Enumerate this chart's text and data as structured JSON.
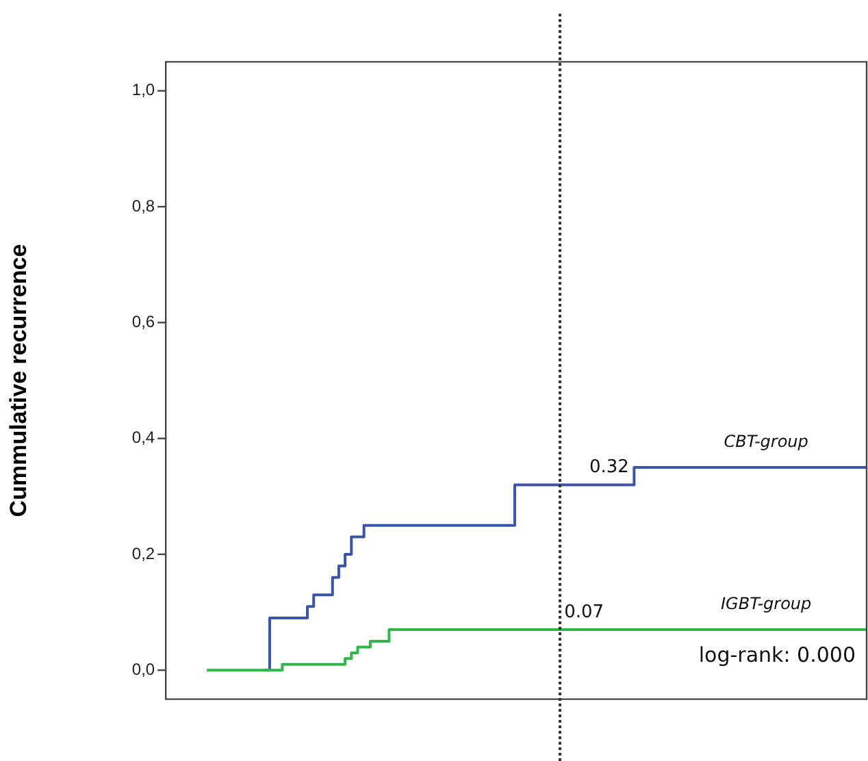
{
  "chart_data": {
    "type": "step",
    "ylabel": "Cummulative recurrence",
    "categories": [
      null,
      null,
      null,
      null,
      null,
      null,
      null,
      null,
      null,
      null,
      null,
      null,
      null,
      null,
      null,
      null,
      null,
      null,
      null,
      null,
      null,
      null,
      null,
      null,
      null,
      null,
      null,
      null,
      null,
      null,
      null,
      null,
      null,
      null,
      null,
      null,
      null,
      null,
      null,
      null,
      null,
      null,
      null,
      null,
      null,
      null,
      null,
      null,
      null,
      null,
      null,
      null,
      null,
      null,
      null,
      null,
      null,
      null,
      null,
      null,
      null,
      null,
      null,
      null,
      null,
      null,
      null,
      null,
      null,
      null,
      null,
      null,
      null,
      null,
      null,
      null,
      null,
      null,
      null,
      null,
      null,
      null,
      null,
      null,
      null,
      null,
      null,
      null,
      null,
      null,
      null,
      null,
      null,
      null,
      null,
      null,
      null,
      null,
      null,
      null,
      null,
      null,
      null,
      null,
      null,
      null
    ],
    "series": [
      {
        "name": "CBT-group",
        "color": "#3a55a8",
        "values": [
          null,
          null,
          null,
          null,
          null,
          null,
          null,
          null,
          null,
          0,
          0.09,
          0.09,
          0.09,
          0.09,
          0.09,
          0.09,
          0.11,
          0.13,
          0.13,
          0.13,
          0.16,
          0.18,
          0.2,
          0.23,
          0.23,
          0.25,
          0.25,
          0.25,
          0.25,
          0.25,
          0.25,
          0.25,
          0.25,
          0.25,
          0.25,
          0.25,
          0.25,
          0.25,
          0.25,
          0.25,
          0.25,
          0.25,
          0.25,
          0.25,
          0.25,
          0.25,
          0.25,
          0.25,
          0.25,
          0.32,
          0.32,
          0.32,
          0.32,
          0.32,
          0.32,
          0.32,
          0.32,
          0.32,
          0.32,
          0.32,
          0.32,
          0.32,
          0.32,
          0.32,
          0.32,
          0.32,
          0.32,
          0.32,
          0.35,
          0.35,
          0.35,
          0.35,
          0.35,
          0.35,
          0.35,
          0.35,
          0.35,
          0.35,
          0.35,
          0.35,
          0.35,
          0.35,
          0.35,
          0.35,
          0.35,
          0.35,
          0.35,
          0.35,
          0.35,
          0.35,
          0.35,
          0.35,
          0.35,
          0.35,
          0.35,
          0.35,
          0.35,
          0.35,
          0.35,
          0.35,
          0.35,
          0.35,
          0.35,
          0.35,
          0.35,
          0.35
        ],
        "value_labels": [
          null,
          null,
          null,
          null,
          null,
          null,
          null,
          null,
          null,
          null,
          null,
          null,
          null,
          null,
          null,
          null,
          null,
          null,
          null,
          null,
          null,
          null,
          null,
          null,
          null,
          null,
          null,
          null,
          null,
          null,
          null,
          null,
          null,
          null,
          null,
          null,
          null,
          null,
          null,
          null,
          null,
          null,
          null,
          null,
          null,
          null,
          null,
          null,
          null,
          null,
          null,
          null,
          null,
          null,
          null,
          null,
          null,
          null,
          null,
          null,
          "0.32",
          null,
          null,
          null,
          null,
          null,
          null,
          null,
          null,
          null,
          null,
          null,
          null,
          null,
          null,
          null,
          null,
          null,
          null,
          null,
          null,
          null,
          null,
          null,
          null,
          null,
          null,
          null,
          null,
          null,
          null,
          null,
          null,
          null,
          null,
          null,
          null,
          null,
          null,
          null,
          null,
          null,
          null,
          null,
          null,
          null
        ]
      },
      {
        "name": "IGBT-group",
        "color": "#2eb84a",
        "values": [
          0,
          0,
          0,
          0,
          0,
          0,
          0,
          0,
          0,
          0,
          0,
          0,
          0.01,
          0.01,
          0.01,
          0.01,
          0.01,
          0.01,
          0.01,
          0.01,
          0.01,
          0.01,
          0.02,
          0.03,
          0.04,
          0.04,
          0.05,
          0.05,
          0.05,
          0.07,
          0.07,
          0.07,
          0.07,
          0.07,
          0.07,
          0.07,
          0.07,
          0.07,
          0.07,
          0.07,
          0.07,
          0.07,
          0.07,
          0.07,
          0.07,
          0.07,
          0.07,
          0.07,
          0.07,
          0.07,
          0.07,
          0.07,
          0.07,
          0.07,
          0.07,
          0.07,
          0.07,
          0.07,
          0.07,
          0.07,
          0.07,
          0.07,
          0.07,
          0.07,
          0.07,
          0.07,
          0.07,
          0.07,
          0.07,
          0.07,
          0.07,
          0.07,
          0.07,
          0.07,
          0.07,
          0.07,
          0.07,
          0.07,
          0.07,
          0.07,
          0.07,
          0.07,
          0.07,
          0.07,
          0.07,
          0.07,
          0.07,
          0.07,
          0.07,
          0.07,
          0.07,
          0.07,
          0.07,
          0.07,
          0.07,
          0.07,
          0.07,
          0.07,
          0.07,
          0.07,
          0.07,
          0.07,
          0.07,
          0.07,
          0.07,
          0.07
        ],
        "value_labels": [
          null,
          null,
          null,
          null,
          null,
          null,
          null,
          null,
          null,
          null,
          null,
          null,
          null,
          null,
          null,
          null,
          null,
          null,
          null,
          null,
          null,
          null,
          null,
          null,
          null,
          null,
          null,
          null,
          null,
          null,
          null,
          null,
          null,
          null,
          null,
          null,
          null,
          null,
          null,
          null,
          null,
          null,
          null,
          null,
          null,
          null,
          null,
          null,
          null,
          null,
          null,
          null,
          null,
          null,
          null,
          null,
          "0.07",
          null,
          null,
          null,
          null,
          null,
          null,
          null,
          null,
          null,
          null,
          null,
          null,
          null,
          null,
          null,
          null,
          null,
          null,
          null,
          null,
          null,
          null,
          null,
          null,
          null,
          null,
          null,
          null,
          null,
          null,
          null,
          null,
          null,
          null,
          null,
          null,
          null,
          null,
          null,
          null,
          null,
          null,
          null,
          null,
          null,
          null,
          null,
          null,
          null
        ]
      }
    ],
    "ylim": [
      -0.05,
      1.05
    ],
    "yticks": [
      {
        "value": 0,
        "label": "0,0"
      },
      {
        "value": 0.2,
        "label": "0,2"
      },
      {
        "value": 0.4,
        "label": "0,4"
      },
      {
        "value": 0.6,
        "label": "0,6"
      },
      {
        "value": 0.8,
        "label": "0,8"
      },
      {
        "value": 1,
        "label": "1,0"
      }
    ],
    "annotations": [
      "log-rank: 0.000"
    ],
    "tick_labels": "y",
    "grid": false,
    "legend": false,
    "marker": "none",
    "line_style": "solid"
  }
}
